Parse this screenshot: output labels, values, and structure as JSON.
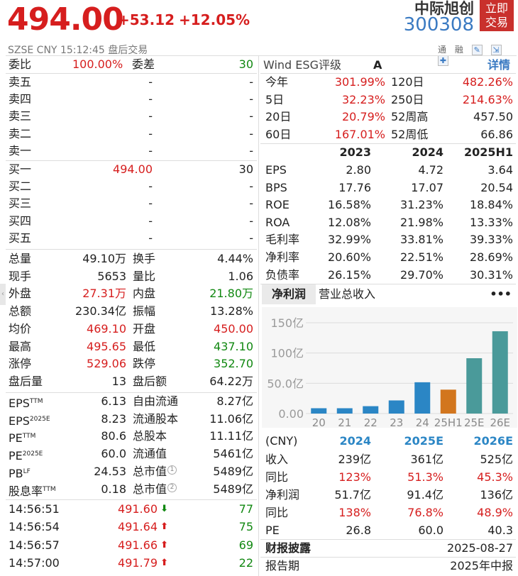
{
  "header": {
    "price": "494.00",
    "change": "+53.12",
    "change_pct": "+12.05%",
    "exchange": "SZSE",
    "currency": "CNY",
    "time": "15:12:45",
    "session": "盘后交易",
    "name": "中际旭创",
    "code": "300308",
    "trade_btn_1": "立即",
    "trade_btn_2": "交易",
    "toolbar": {
      "t1": "通",
      "t2": "融",
      "i1": "✎",
      "i2": "⇲",
      "i3": "✚"
    }
  },
  "orderbook": {
    "wb_label": "委比",
    "wb_value": "100.00%",
    "wc_label": "委差",
    "wc_value": "30",
    "asks": [
      {
        "label": "卖五",
        "price": "-",
        "vol": "-"
      },
      {
        "label": "卖四",
        "price": "-",
        "vol": "-"
      },
      {
        "label": "卖三",
        "price": "-",
        "vol": "-"
      },
      {
        "label": "卖二",
        "price": "-",
        "vol": "-"
      },
      {
        "label": "卖一",
        "price": "-",
        "vol": "-"
      }
    ],
    "bids": [
      {
        "label": "买一",
        "price": "494.00",
        "vol": "30"
      },
      {
        "label": "买二",
        "price": "-",
        "vol": "-"
      },
      {
        "label": "买三",
        "price": "-",
        "vol": "-"
      },
      {
        "label": "买四",
        "price": "-",
        "vol": "-"
      },
      {
        "label": "买五",
        "price": "-",
        "vol": "-"
      }
    ]
  },
  "quotes": [
    {
      "l1": "总量",
      "v1": "49.10万",
      "c1": "blk",
      "l2": "换手",
      "v2": "4.44%",
      "c2": "blk"
    },
    {
      "l1": "现手",
      "v1": "5653",
      "c1": "blk",
      "l2": "量比",
      "v2": "1.06",
      "c2": "blk"
    },
    {
      "l1": "外盘",
      "v1": "27.31万",
      "c1": "red",
      "l2": "内盘",
      "v2": "21.80万",
      "c2": "green"
    },
    {
      "l1": "总额",
      "v1": "230.34亿",
      "c1": "blk",
      "l2": "振幅",
      "v2": "13.28%",
      "c2": "blk"
    },
    {
      "l1": "均价",
      "v1": "469.10",
      "c1": "red",
      "l2": "开盘",
      "v2": "450.00",
      "c2": "red"
    },
    {
      "l1": "最高",
      "v1": "495.65",
      "c1": "red",
      "l2": "最低",
      "v2": "437.10",
      "c2": "green"
    },
    {
      "l1": "涨停",
      "v1": "529.06",
      "c1": "red",
      "l2": "跌停",
      "v2": "352.70",
      "c2": "green"
    },
    {
      "l1": "盘后量",
      "v1": "13",
      "c1": "blk",
      "l2": "盘后额",
      "v2": "64.22万",
      "c2": "blk"
    }
  ],
  "valuation": [
    {
      "l1": "EPS",
      "s1": "TTM",
      "v1": "6.13",
      "l2": "自由流通",
      "s2": "",
      "v2": "8.27亿"
    },
    {
      "l1": "EPS",
      "s1": "2025E",
      "v1": "8.23",
      "l2": "流通股本",
      "s2": "",
      "v2": "11.06亿"
    },
    {
      "l1": "PE",
      "s1": "TTM",
      "v1": "80.6",
      "l2": "总股本",
      "s2": "",
      "v2": "11.11亿"
    },
    {
      "l1": "PE",
      "s1": "2025E",
      "v1": "60.0",
      "l2": "流通值",
      "s2": "",
      "v2": "5461亿"
    },
    {
      "l1": "PB",
      "s1": "LF",
      "v1": "24.53",
      "l2": "总市值",
      "s2": "1",
      "v2": "5489亿"
    },
    {
      "l1": "股息率",
      "s1": "TTM",
      "v1": "0.18",
      "l2": "总市值",
      "s2": "2",
      "v2": "5489亿"
    }
  ],
  "ticks": [
    {
      "time": "14:56:51",
      "price": "491.60",
      "dir": "down",
      "vol": "77"
    },
    {
      "time": "14:56:54",
      "price": "491.64",
      "dir": "up",
      "vol": "75"
    },
    {
      "time": "14:56:57",
      "price": "491.66",
      "dir": "up",
      "vol": "69"
    },
    {
      "time": "14:57:00",
      "price": "491.79",
      "dir": "up",
      "vol": "22"
    }
  ],
  "esg": {
    "label": "Wind ESG评级",
    "rating": "A",
    "detail": "详情"
  },
  "perf": [
    {
      "l1": "今年",
      "v1": "301.99%",
      "c1": "red",
      "l2": "120日",
      "v2": "482.26%",
      "c2": "red"
    },
    {
      "l1": "5日",
      "v1": "32.23%",
      "c1": "red",
      "l2": "250日",
      "v2": "214.63%",
      "c2": "red"
    },
    {
      "l1": "20日",
      "v1": "20.79%",
      "c1": "red",
      "l2": "52周高",
      "v2": "457.50",
      "c2": "blk"
    },
    {
      "l1": "60日",
      "v1": "167.01%",
      "c1": "red",
      "l2": "52周低",
      "v2": "66.86",
      "c2": "blk"
    }
  ],
  "fin": {
    "years": [
      "2023",
      "2024",
      "2025H1"
    ],
    "rows": [
      {
        "label": "EPS",
        "vals": [
          "2.80",
          "4.72",
          "3.64"
        ]
      },
      {
        "label": "BPS",
        "vals": [
          "17.76",
          "17.07",
          "20.54"
        ]
      },
      {
        "label": "ROE",
        "vals": [
          "16.58%",
          "31.23%",
          "18.84%"
        ]
      },
      {
        "label": "ROA",
        "vals": [
          "12.08%",
          "21.98%",
          "13.33%"
        ]
      },
      {
        "label": "毛利率",
        "vals": [
          "32.99%",
          "33.81%",
          "39.33%"
        ]
      },
      {
        "label": "净利率",
        "vals": [
          "20.60%",
          "22.51%",
          "28.69%"
        ]
      },
      {
        "label": "负债率",
        "vals": [
          "26.15%",
          "29.70%",
          "30.31%"
        ]
      }
    ]
  },
  "tabs": {
    "t1": "净利润",
    "t2": "营业总收入",
    "more": "•••"
  },
  "chart_data": {
    "type": "bar",
    "categories": [
      "20",
      "21",
      "22",
      "23",
      "24",
      "25H1",
      "25E",
      "26E"
    ],
    "values": [
      8.8,
      8.8,
      12.2,
      21.7,
      51.7,
      39.5,
      91.4,
      136
    ],
    "colors": [
      "#2b86c5",
      "#2b86c5",
      "#2b86c5",
      "#2b86c5",
      "#2b86c5",
      "#d2761e",
      "#4a9a9a",
      "#4a9a9a"
    ],
    "yticks": [
      "150亿",
      "100亿",
      "50.0亿",
      "0.00"
    ],
    "ytick_values": [
      150,
      100,
      50,
      0
    ],
    "ylim": [
      0,
      150
    ]
  },
  "forecast": {
    "header": {
      "unit": "(CNY)",
      "y1": "2024",
      "y2": "2025E",
      "y3": "2026E"
    },
    "rows": [
      {
        "label": "收入",
        "vals": [
          "239亿",
          "361亿",
          "525亿"
        ],
        "cls": "blk"
      },
      {
        "label": "同比",
        "vals": [
          "123%",
          "51.3%",
          "45.3%"
        ],
        "cls": "red"
      },
      {
        "label": "净利润",
        "vals": [
          "51.7亿",
          "91.4亿",
          "136亿"
        ],
        "cls": "blk"
      },
      {
        "label": "同比",
        "vals": [
          "138%",
          "76.8%",
          "48.9%"
        ],
        "cls": "red"
      },
      {
        "label": "PE",
        "vals": [
          "26.8",
          "60.0",
          "40.3"
        ],
        "cls": "blk"
      }
    ]
  },
  "report": {
    "disclosure_label": "财报披露",
    "disclosure_value": "2025-08-27",
    "period_label": "报告期",
    "period_value": "2025年中报"
  }
}
